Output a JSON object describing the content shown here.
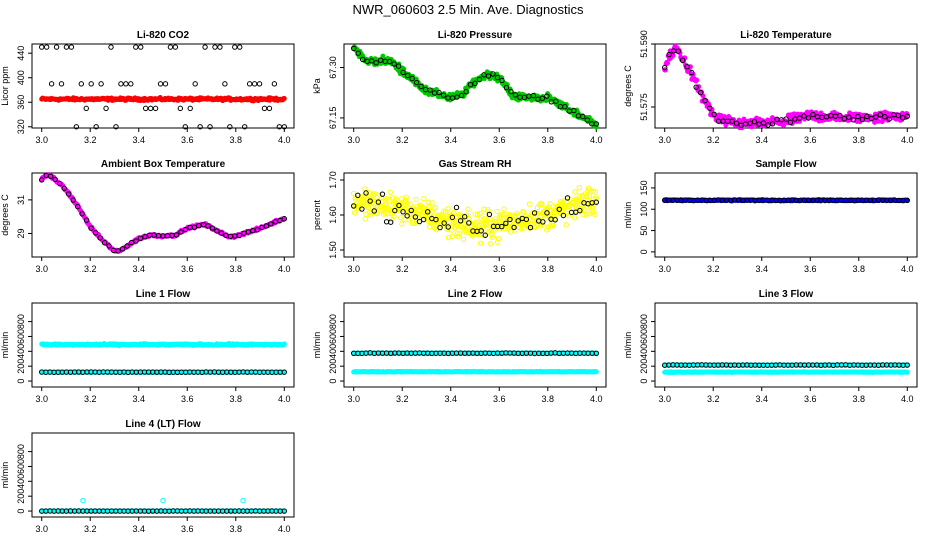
{
  "main_title": "NWR_060603  2.5 Min. Ave. Diagnostics",
  "colors": {
    "black": "#000000",
    "red": "#ff0000",
    "green": "#00c800",
    "magenta": "#ff00ff",
    "yellow": "#ffff00",
    "blue": "#0000ff",
    "cyan": "#00ffff"
  },
  "chart_data": [
    {
      "type": "scatter",
      "title": "Li-820 CO2",
      "ylabel": "Licor ppm",
      "xlim": [
        3.0,
        4.0
      ],
      "ylim": [
        318,
        455
      ],
      "xticks": [
        "3.0",
        "3.2",
        "3.4",
        "3.6",
        "3.8",
        "4.0"
      ],
      "xtick_values": [
        3.0,
        3.2,
        3.4,
        3.6,
        3.8,
        4.0
      ],
      "yticks": [
        "320",
        "360",
        "400",
        "440"
      ],
      "ytick_values": [
        320,
        360,
        400,
        440
      ],
      "series": [
        {
          "name": "dense",
          "color": "red",
          "filled": true,
          "pattern": "flat",
          "base": 365,
          "amp": 1.5,
          "noise": 1.5,
          "n": 300
        },
        {
          "name": "sparse",
          "color": "black",
          "filled": false,
          "pattern": "levels",
          "levels": [
            320,
            350,
            390,
            450
          ],
          "n": 50
        }
      ]
    },
    {
      "type": "scatter",
      "title": "Li-820 Pressure",
      "ylabel": "kPa",
      "xlim": [
        3.0,
        4.0
      ],
      "ylim": [
        67.12,
        67.37
      ],
      "xticks": [
        "3.0",
        "3.2",
        "3.4",
        "3.6",
        "3.8",
        "4.0"
      ],
      "xtick_values": [
        3.0,
        3.2,
        3.4,
        3.6,
        3.8,
        4.0
      ],
      "yticks": [
        "67.15",
        "67.30"
      ],
      "ytick_values": [
        67.15,
        67.3
      ],
      "series": [
        {
          "name": "dense",
          "color": "green",
          "filled": true,
          "pattern": "curve",
          "x": [
            3.0,
            3.05,
            3.15,
            3.2,
            3.3,
            3.4,
            3.45,
            3.5,
            3.55,
            3.6,
            3.65,
            3.7,
            3.8,
            3.9,
            4.0
          ],
          "y": [
            67.36,
            67.32,
            67.32,
            67.29,
            67.23,
            67.21,
            67.22,
            67.26,
            67.28,
            67.27,
            67.22,
            67.21,
            67.21,
            67.17,
            67.13
          ],
          "noise": 0.008,
          "n": 350
        },
        {
          "name": "sparse",
          "color": "black",
          "filled": false,
          "pattern": "curve",
          "x": [
            3.0,
            3.05,
            3.15,
            3.2,
            3.3,
            3.4,
            3.45,
            3.5,
            3.55,
            3.6,
            3.65,
            3.7,
            3.8,
            3.9,
            4.0
          ],
          "y": [
            67.36,
            67.32,
            67.32,
            67.29,
            67.23,
            67.21,
            67.22,
            67.26,
            67.28,
            67.27,
            67.22,
            67.21,
            67.21,
            67.17,
            67.13
          ],
          "noise": 0.005,
          "n": 55
        }
      ]
    },
    {
      "type": "scatter",
      "title": "Li-820 Temperature",
      "ylabel": "degrees C",
      "xlim": [
        3.0,
        4.0
      ],
      "ylim": [
        51.57,
        51.59
      ],
      "xticks": [
        "3.0",
        "3.2",
        "3.4",
        "3.6",
        "3.8",
        "4.0"
      ],
      "xtick_values": [
        3.0,
        3.2,
        3.4,
        3.6,
        3.8,
        4.0
      ],
      "yticks": [
        "51.575",
        "51.590"
      ],
      "ytick_values": [
        51.575,
        51.59
      ],
      "series": [
        {
          "name": "dense",
          "color": "magenta",
          "filled": true,
          "pattern": "curve",
          "x": [
            3.0,
            3.02,
            3.05,
            3.1,
            3.15,
            3.2,
            3.25,
            3.3,
            3.4,
            3.5,
            3.6,
            3.7,
            3.8,
            3.9,
            4.0
          ],
          "y": [
            51.584,
            51.587,
            51.589,
            51.584,
            51.578,
            51.573,
            51.5715,
            51.571,
            51.5712,
            51.5715,
            51.573,
            51.5725,
            51.5725,
            51.5727,
            51.573
          ],
          "noise": 0.0009,
          "n": 350
        },
        {
          "name": "sparse",
          "color": "black",
          "filled": false,
          "pattern": "curve",
          "x": [
            3.0,
            3.02,
            3.05,
            3.1,
            3.15,
            3.2,
            3.25,
            3.3,
            3.4,
            3.5,
            3.6,
            3.7,
            3.8,
            3.9,
            4.0
          ],
          "y": [
            51.584,
            51.587,
            51.589,
            51.584,
            51.578,
            51.573,
            51.5715,
            51.571,
            51.5712,
            51.5715,
            51.573,
            51.5725,
            51.5725,
            51.5727,
            51.573
          ],
          "noise": 0.0006,
          "n": 55
        }
      ]
    },
    {
      "type": "scatter",
      "title": "Ambient Box Temperature",
      "ylabel": "degrees C",
      "xlim": [
        3.0,
        4.0
      ],
      "ylim": [
        27.6,
        32.6
      ],
      "xticks": [
        "3.0",
        "3.2",
        "3.4",
        "3.6",
        "3.8",
        "4.0"
      ],
      "xtick_values": [
        3.0,
        3.2,
        3.4,
        3.6,
        3.8,
        4.0
      ],
      "yticks": [
        "29",
        "31"
      ],
      "ytick_values": [
        29,
        31
      ],
      "series": [
        {
          "name": "dense",
          "color": "magenta",
          "filled": true,
          "pattern": "curve",
          "x": [
            3.0,
            3.02,
            3.05,
            3.1,
            3.15,
            3.2,
            3.25,
            3.3,
            3.32,
            3.4,
            3.45,
            3.5,
            3.55,
            3.6,
            3.67,
            3.72,
            3.77,
            3.8,
            3.9,
            4.0
          ],
          "y": [
            32.2,
            32.5,
            32.3,
            31.6,
            30.6,
            29.4,
            28.6,
            27.95,
            27.95,
            28.7,
            28.9,
            28.85,
            28.9,
            29.3,
            29.55,
            29.2,
            28.8,
            28.85,
            29.3,
            29.9
          ],
          "noise": 0.05,
          "n": 300
        },
        {
          "name": "sparse",
          "color": "black",
          "filled": false,
          "pattern": "curve",
          "x": [
            3.0,
            3.02,
            3.05,
            3.1,
            3.15,
            3.2,
            3.25,
            3.3,
            3.32,
            3.4,
            3.45,
            3.5,
            3.55,
            3.6,
            3.67,
            3.72,
            3.77,
            3.8,
            3.9,
            4.0
          ],
          "y": [
            32.2,
            32.5,
            32.3,
            31.6,
            30.6,
            29.4,
            28.6,
            27.95,
            27.95,
            28.7,
            28.9,
            28.85,
            28.9,
            29.3,
            29.55,
            29.2,
            28.8,
            28.85,
            29.3,
            29.9
          ],
          "noise": 0.03,
          "n": 55
        }
      ]
    },
    {
      "type": "scatter",
      "title": "Gas Stream RH",
      "ylabel": "percent",
      "xlim": [
        3.0,
        4.0
      ],
      "ylim": [
        1.48,
        1.72
      ],
      "xticks": [
        "3.0",
        "3.2",
        "3.4",
        "3.6",
        "3.8",
        "4.0"
      ],
      "xtick_values": [
        3.0,
        3.2,
        3.4,
        3.6,
        3.8,
        4.0
      ],
      "yticks": [
        "1.50",
        "1.60",
        "1.70"
      ],
      "ytick_values": [
        1.5,
        1.6,
        1.7
      ],
      "series": [
        {
          "name": "dense",
          "color": "yellow",
          "filled": false,
          "pattern": "curve",
          "x": [
            3.0,
            3.2,
            3.4,
            3.5,
            3.6,
            3.8,
            4.0
          ],
          "y": [
            1.635,
            1.62,
            1.58,
            1.565,
            1.575,
            1.6,
            1.645
          ],
          "noise": 0.03,
          "n": 500
        },
        {
          "name": "sparse",
          "color": "black",
          "filled": false,
          "pattern": "curve",
          "x": [
            3.0,
            3.2,
            3.4,
            3.5,
            3.6,
            3.8,
            4.0
          ],
          "y": [
            1.635,
            1.62,
            1.58,
            1.565,
            1.575,
            1.6,
            1.645
          ],
          "noise": 0.03,
          "n": 60
        }
      ]
    },
    {
      "type": "scatter",
      "title": "Sample Flow",
      "ylabel": "ml/min",
      "xlim": [
        3.0,
        4.0
      ],
      "ylim": [
        -12,
        185
      ],
      "xticks": [
        "3.0",
        "3.2",
        "3.4",
        "3.6",
        "3.8",
        "4.0"
      ],
      "xtick_values": [
        3.0,
        3.2,
        3.4,
        3.6,
        3.8,
        4.0
      ],
      "yticks": [
        "0",
        "50",
        "100",
        "150"
      ],
      "ytick_values": [
        0,
        50,
        100,
        150
      ],
      "series": [
        {
          "name": "dense",
          "color": "blue",
          "filled": true,
          "pattern": "flat",
          "base": 121,
          "amp": 0,
          "noise": 1,
          "n": 300
        },
        {
          "name": "sparse",
          "color": "black",
          "filled": false,
          "pattern": "flat",
          "base": 121,
          "amp": 0,
          "noise": 0.5,
          "n": 60
        }
      ]
    },
    {
      "type": "scatter",
      "title": "Line 1 Flow",
      "ylabel": "ml/min",
      "xlim": [
        3.0,
        4.0
      ],
      "ylim": [
        -80,
        1050
      ],
      "xticks": [
        "3.0",
        "3.2",
        "3.4",
        "3.6",
        "3.8",
        "4.0"
      ],
      "xtick_values": [
        3.0,
        3.2,
        3.4,
        3.6,
        3.8,
        4.0
      ],
      "yticks": [
        "0",
        "200",
        "400",
        "600",
        "800"
      ],
      "ytick_values": [
        0,
        200,
        400,
        600,
        800
      ],
      "series": [
        {
          "name": "dense_high",
          "color": "cyan",
          "filled": true,
          "pattern": "flat",
          "base": 490,
          "amp": 0,
          "noise": 8,
          "n": 300
        },
        {
          "name": "dense_low",
          "color": "cyan",
          "filled": true,
          "pattern": "flat",
          "base": 120,
          "amp": 0,
          "noise": 3,
          "n": 300
        },
        {
          "name": "sparse",
          "color": "black",
          "filled": false,
          "pattern": "flat",
          "base": 120,
          "amp": 0,
          "noise": 2,
          "n": 60
        }
      ]
    },
    {
      "type": "scatter",
      "title": "Line 2 Flow",
      "ylabel": "ml/min",
      "xlim": [
        3.0,
        4.0
      ],
      "ylim": [
        -80,
        1050
      ],
      "xticks": [
        "3.0",
        "3.2",
        "3.4",
        "3.6",
        "3.8",
        "4.0"
      ],
      "xtick_values": [
        3.0,
        3.2,
        3.4,
        3.6,
        3.8,
        4.0
      ],
      "yticks": [
        "0",
        "200",
        "400",
        "600",
        "800"
      ],
      "ytick_values": [
        0,
        200,
        400,
        600,
        800
      ],
      "series": [
        {
          "name": "dense_high",
          "color": "cyan",
          "filled": true,
          "pattern": "flat",
          "base": 375,
          "amp": 0,
          "noise": 4,
          "n": 300
        },
        {
          "name": "dense_low",
          "color": "cyan",
          "filled": true,
          "pattern": "flat",
          "base": 125,
          "amp": 0,
          "noise": 3,
          "n": 300
        },
        {
          "name": "sparse",
          "color": "black",
          "filled": false,
          "pattern": "flat",
          "base": 375,
          "amp": 0,
          "noise": 3,
          "n": 60
        }
      ]
    },
    {
      "type": "scatter",
      "title": "Line 3 Flow",
      "ylabel": "ml/min",
      "xlim": [
        3.0,
        4.0
      ],
      "ylim": [
        -80,
        1050
      ],
      "xticks": [
        "3.0",
        "3.2",
        "3.4",
        "3.6",
        "3.8",
        "4.0"
      ],
      "xtick_values": [
        3.0,
        3.2,
        3.4,
        3.6,
        3.8,
        4.0
      ],
      "yticks": [
        "0",
        "200",
        "400",
        "600",
        "800"
      ],
      "ytick_values": [
        0,
        200,
        400,
        600,
        800
      ],
      "series": [
        {
          "name": "dense_high",
          "color": "cyan",
          "filled": true,
          "pattern": "flat",
          "base": 215,
          "amp": 0,
          "noise": 3,
          "n": 300
        },
        {
          "name": "dense_low",
          "color": "cyan",
          "filled": true,
          "pattern": "flat",
          "base": 120,
          "amp": 0,
          "noise": 3,
          "n": 300
        },
        {
          "name": "sparse",
          "color": "black",
          "filled": false,
          "pattern": "flat",
          "base": 215,
          "amp": 0,
          "noise": 2,
          "n": 60
        }
      ]
    },
    {
      "type": "scatter",
      "title": "Line 4 (LT) Flow",
      "ylabel": "ml/min",
      "xlim": [
        3.0,
        4.0
      ],
      "ylim": [
        -80,
        1050
      ],
      "xticks": [
        "3.0",
        "3.2",
        "3.4",
        "3.6",
        "3.8",
        "4.0"
      ],
      "xtick_values": [
        3.0,
        3.2,
        3.4,
        3.6,
        3.8,
        4.0
      ],
      "yticks": [
        "0",
        "200",
        "400",
        "600",
        "800"
      ],
      "ytick_values": [
        0,
        200,
        400,
        600,
        800
      ],
      "series": [
        {
          "name": "dense",
          "color": "cyan",
          "filled": true,
          "pattern": "flat",
          "base": 0,
          "amp": 0,
          "noise": 2,
          "n": 300
        },
        {
          "name": "sparse",
          "color": "black",
          "filled": false,
          "pattern": "flat",
          "base": 0,
          "amp": 0,
          "noise": 1,
          "n": 60
        },
        {
          "name": "spikes",
          "color": "cyan",
          "filled": false,
          "pattern": "points",
          "x": [
            3.17,
            3.5,
            3.83
          ],
          "y": [
            140,
            140,
            140
          ]
        }
      ]
    }
  ]
}
